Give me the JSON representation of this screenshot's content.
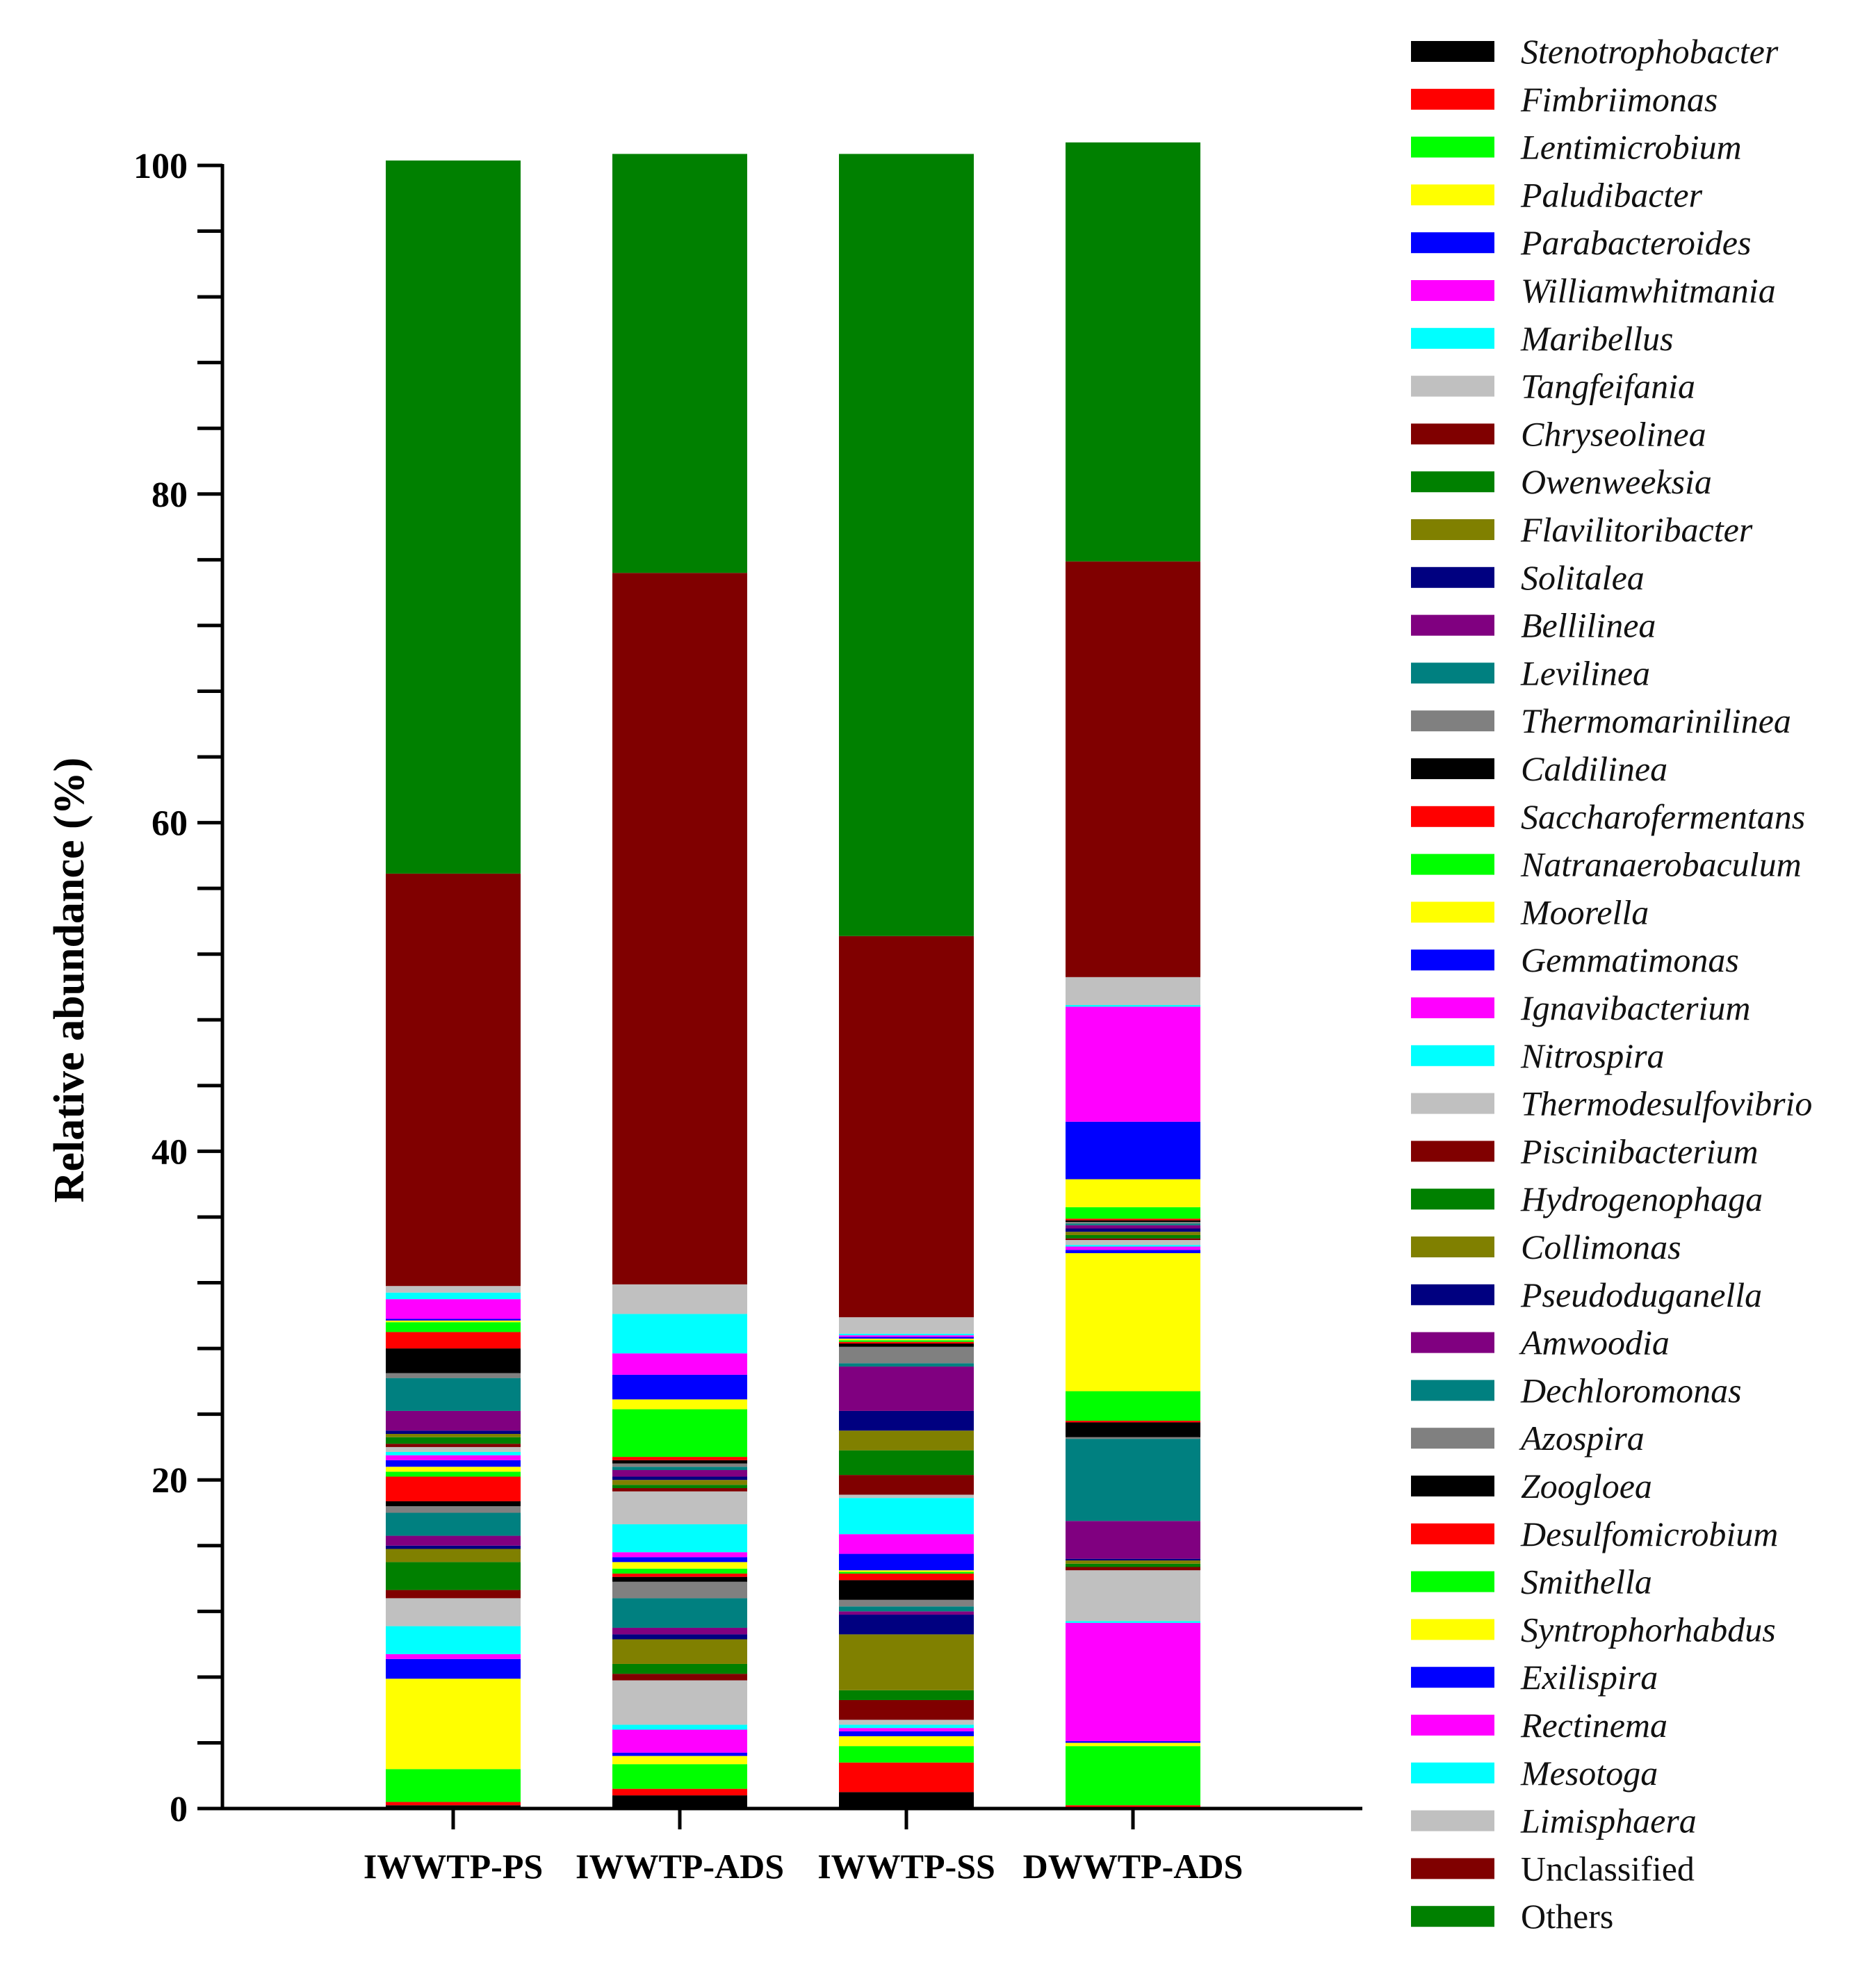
{
  "chart_data": {
    "type": "bar",
    "stacked": true,
    "title": "",
    "xlabel": "",
    "ylabel": "Relative abundance (%)",
    "ylim": [
      0,
      100
    ],
    "yticks": [
      0,
      20,
      40,
      60,
      80,
      100
    ],
    "categories": [
      "IWWTP-PS",
      "IWWTP-ADS",
      "IWWTP-SS",
      "DWWTP-ADS"
    ],
    "series": [
      {
        "name": "Stenotrophobacter",
        "color": "#000000",
        "italic": true,
        "values": [
          0.2,
          0.8,
          1.0,
          0.1
        ]
      },
      {
        "name": "Fimbriimonas",
        "color": "#ff0000",
        "italic": true,
        "values": [
          0.2,
          0.4,
          1.8,
          0.1
        ]
      },
      {
        "name": "Lentimicrobium",
        "color": "#00ff00",
        "italic": true,
        "values": [
          2.0,
          1.5,
          1.0,
          3.6
        ]
      },
      {
        "name": "Paludibacter",
        "color": "#ffff00",
        "italic": true,
        "values": [
          5.5,
          0.5,
          0.6,
          0.2
        ]
      },
      {
        "name": "Parabacteroides",
        "color": "#0000ff",
        "italic": true,
        "values": [
          1.2,
          0.2,
          0.3,
          0.1
        ]
      },
      {
        "name": "Williamwhitmania",
        "color": "#ff00ff",
        "italic": true,
        "values": [
          0.3,
          1.4,
          0.2,
          7.2
        ]
      },
      {
        "name": "Maribellus",
        "color": "#00ffff",
        "italic": true,
        "values": [
          1.7,
          0.3,
          0.2,
          0.1
        ]
      },
      {
        "name": "Tangfeifania",
        "color": "#c0c0c0",
        "italic": true,
        "values": [
          1.7,
          2.7,
          0.3,
          3.1
        ]
      },
      {
        "name": "Chryseolinea",
        "color": "#800000",
        "italic": true,
        "values": [
          0.5,
          0.4,
          1.2,
          0.2
        ]
      },
      {
        "name": "Owenweeksia",
        "color": "#008000",
        "italic": true,
        "values": [
          1.7,
          0.6,
          0.6,
          0.2
        ]
      },
      {
        "name": "Flavilitoribacter",
        "color": "#808000",
        "italic": true,
        "values": [
          0.8,
          1.5,
          3.4,
          0.2
        ]
      },
      {
        "name": "Solitalea",
        "color": "#000080",
        "italic": true,
        "values": [
          0.2,
          0.3,
          1.2,
          0.1
        ]
      },
      {
        "name": "Bellilinea",
        "color": "#800080",
        "italic": true,
        "values": [
          0.6,
          0.4,
          0.2,
          2.3
        ]
      },
      {
        "name": "Levilinea",
        "color": "#008080",
        "italic": true,
        "values": [
          1.4,
          1.8,
          0.3,
          5.0
        ]
      },
      {
        "name": "Thermomarinilinea",
        "color": "#808080",
        "italic": true,
        "values": [
          0.4,
          1.0,
          0.4,
          0.1
        ]
      },
      {
        "name": "Caldilinea",
        "color": "#000000",
        "italic": true,
        "values": [
          0.3,
          0.3,
          1.2,
          0.9
        ]
      },
      {
        "name": "Saccharofermentans",
        "color": "#ff0000",
        "italic": true,
        "values": [
          1.5,
          0.2,
          0.4,
          0.1
        ]
      },
      {
        "name": "Natranaerobaculum",
        "color": "#00ff00",
        "italic": true,
        "values": [
          0.3,
          0.3,
          0.1,
          1.8
        ]
      },
      {
        "name": "Moorella",
        "color": "#ffff00",
        "italic": true,
        "values": [
          0.3,
          0.4,
          0.1,
          8.4
        ]
      },
      {
        "name": "Gemmatimonas",
        "color": "#0000ff",
        "italic": true,
        "values": [
          0.4,
          0.3,
          1.0,
          0.2
        ]
      },
      {
        "name": "Ignavibacterium",
        "color": "#ff00ff",
        "italic": true,
        "values": [
          0.3,
          0.3,
          1.2,
          0.2
        ]
      },
      {
        "name": "Nitrospira",
        "color": "#00ffff",
        "italic": true,
        "values": [
          0.2,
          1.7,
          2.2,
          0.1
        ]
      },
      {
        "name": "Thermodesulfovibrio",
        "color": "#c0c0c0",
        "italic": true,
        "values": [
          0.3,
          2.0,
          0.2,
          0.3
        ]
      },
      {
        "name": "Piscinibacterium",
        "color": "#800000",
        "italic": true,
        "values": [
          0.2,
          0.2,
          1.2,
          0.1
        ]
      },
      {
        "name": "Hydrogenophaga",
        "color": "#008000",
        "italic": true,
        "values": [
          0.4,
          0.2,
          1.5,
          0.2
        ]
      },
      {
        "name": "Collimonas",
        "color": "#808000",
        "italic": true,
        "values": [
          0.2,
          0.3,
          1.2,
          0.2
        ]
      },
      {
        "name": "Pseudoduganella",
        "color": "#000080",
        "italic": true,
        "values": [
          0.2,
          0.2,
          1.2,
          0.2
        ]
      },
      {
        "name": "Amwoodia",
        "color": "#800080",
        "italic": true,
        "values": [
          1.2,
          0.4,
          2.7,
          0.2
        ]
      },
      {
        "name": "Dechloromonas",
        "color": "#008080",
        "italic": true,
        "values": [
          2.0,
          0.2,
          0.2,
          0.1
        ]
      },
      {
        "name": "Azospira",
        "color": "#808080",
        "italic": true,
        "values": [
          0.3,
          0.2,
          1.0,
          0.1
        ]
      },
      {
        "name": "Zoogloea",
        "color": "#000000",
        "italic": true,
        "values": [
          1.5,
          0.2,
          0.2,
          0.1
        ]
      },
      {
        "name": "Desulfomicrobium",
        "color": "#ff0000",
        "italic": true,
        "values": [
          1.0,
          0.2,
          0.1,
          0.1
        ]
      },
      {
        "name": "Smithella",
        "color": "#00ff00",
        "italic": true,
        "values": [
          0.6,
          2.9,
          0.1,
          0.7
        ]
      },
      {
        "name": "Syntrophorhabdus",
        "color": "#ffff00",
        "italic": true,
        "values": [
          0.1,
          0.6,
          0.1,
          1.7
        ]
      },
      {
        "name": "Exilispira",
        "color": "#0000ff",
        "italic": true,
        "values": [
          0.1,
          1.5,
          0.1,
          3.5
        ]
      },
      {
        "name": "Rectinema",
        "color": "#ff00ff",
        "italic": true,
        "values": [
          1.2,
          1.3,
          0.1,
          7.0
        ]
      },
      {
        "name": "Mesotoga",
        "color": "#00ffff",
        "italic": true,
        "values": [
          0.4,
          2.4,
          0.1,
          0.1
        ]
      },
      {
        "name": "Limisphaera",
        "color": "#c0c0c0",
        "italic": true,
        "values": [
          0.4,
          1.8,
          1.0,
          1.7
        ]
      },
      {
        "name": "Unclassified",
        "color": "#800000",
        "italic": false,
        "values": [
          25.1,
          43.3,
          23.2,
          25.3
        ]
      },
      {
        "name": "Others",
        "color": "#008000",
        "italic": false,
        "values": [
          43.4,
          25.5,
          47.6,
          25.5
        ]
      }
    ]
  }
}
